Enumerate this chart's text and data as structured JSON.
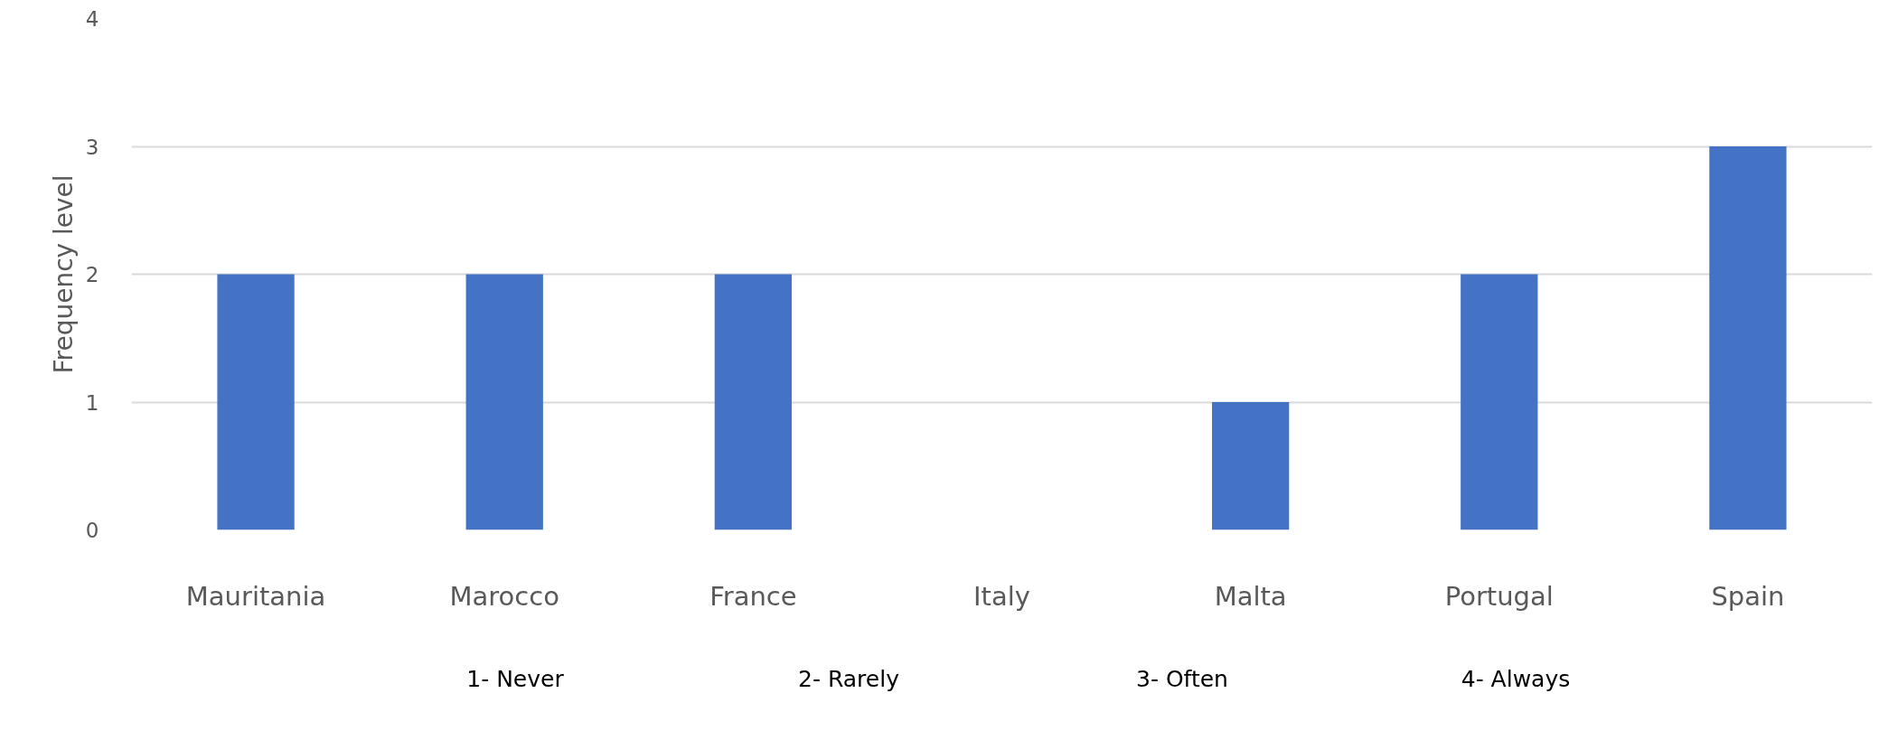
{
  "chart_data": {
    "type": "bar",
    "ylabel": "Frequency level",
    "categories": [
      "Mauritania",
      "Marocco",
      "France",
      "Italy",
      "Malta",
      "Portugal",
      "Spain"
    ],
    "values": [
      2,
      2,
      2,
      0,
      1,
      2,
      3
    ],
    "color": "#4472c4",
    "ylim": [
      0,
      4
    ],
    "yticks": [
      0,
      1,
      2,
      3,
      4
    ],
    "grid": "y",
    "annotations": [
      "1- Never",
      "2- Rarely",
      "3- Often",
      "4- Always"
    ]
  }
}
